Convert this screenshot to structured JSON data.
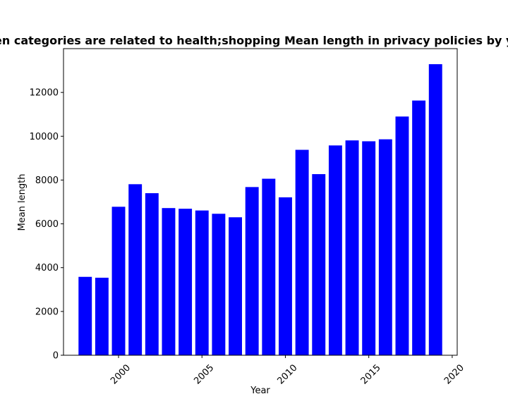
{
  "chart_data": {
    "type": "bar",
    "title": "When categories are related to health;shopping Mean length in privacy policies by year",
    "xlabel": "Year",
    "ylabel": "Mean length",
    "x": [
      1998,
      1999,
      2000,
      2001,
      2002,
      2003,
      2004,
      2005,
      2006,
      2007,
      2008,
      2009,
      2010,
      2011,
      2012,
      2013,
      2014,
      2015,
      2016,
      2017,
      2018,
      2019
    ],
    "values": [
      3580,
      3540,
      6780,
      7810,
      7400,
      6720,
      6690,
      6610,
      6460,
      6300,
      7680,
      8060,
      7210,
      9380,
      8270,
      9580,
      9810,
      9770,
      9860,
      10900,
      11630,
      13290
    ],
    "xlim": [
      1996.7,
      2020.3
    ],
    "ylim": [
      0,
      14000
    ],
    "xticks": [
      2000,
      2005,
      2010,
      2015,
      2020
    ],
    "yticks": [
      0,
      2000,
      4000,
      6000,
      8000,
      10000,
      12000
    ],
    "grid": false,
    "bar_color": "#0000ff"
  }
}
